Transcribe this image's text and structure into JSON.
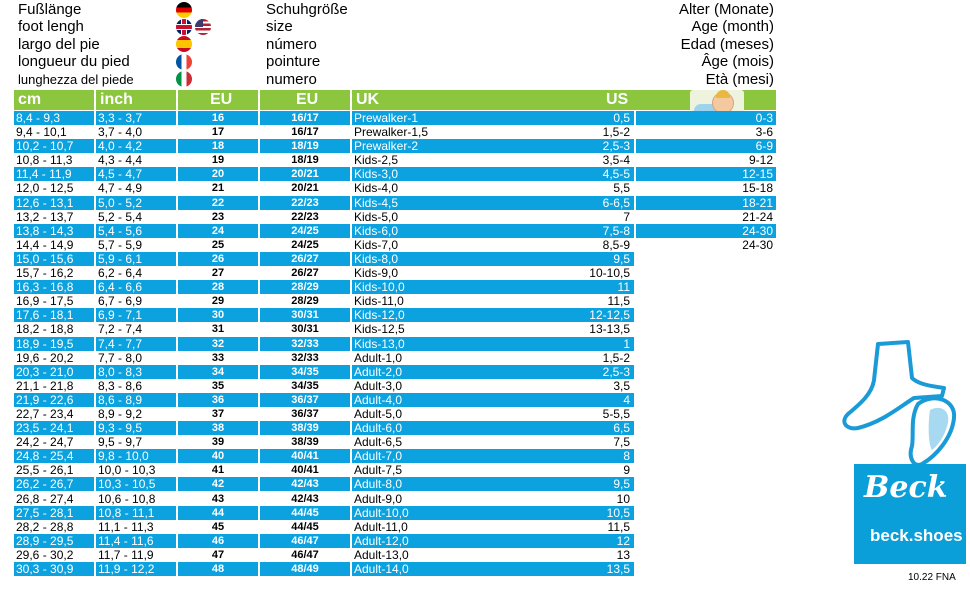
{
  "header": {
    "foot_labels": [
      "Fußlänge",
      "foot lengh",
      "largo del pie",
      "longueur du pied",
      "lunghezza del piede"
    ],
    "size_labels": [
      "Schuhgröße",
      "size",
      "número",
      "pointure",
      "numero"
    ],
    "age_labels": [
      "Alter (Monate)",
      "Age (month)",
      "Edad (meses)",
      "Âge (mois)",
      "Età (mesi)"
    ],
    "flag_icons": [
      "german-flag-icon",
      "uk-us-flags-icon",
      "spanish-flag-icon",
      "french-flag-icon",
      "italian-flag-icon"
    ]
  },
  "columns": [
    "cm",
    "inch",
    "EU",
    "EU",
    "UK",
    "US"
  ],
  "rows": [
    {
      "cm": "8,4 - 9,3",
      "inch": "3,3 - 3,7",
      "eu1": "16",
      "eu2": "16/17",
      "uk": "Prewalker-1",
      "us": "0,5",
      "age": "0-3"
    },
    {
      "cm": "9,4 - 10,1",
      "inch": "3,7 - 4,0",
      "eu1": "17",
      "eu2": "16/17",
      "uk": "Prewalker-1,5",
      "us": "1,5-2",
      "age": "3-6"
    },
    {
      "cm": "10,2 - 10,7",
      "inch": "4,0 - 4,2",
      "eu1": "18",
      "eu2": "18/19",
      "uk": "Prewalker-2",
      "us": "2,5-3",
      "age": "6-9"
    },
    {
      "cm": "10,8 - 11,3",
      "inch": "4,3 - 4,4",
      "eu1": "19",
      "eu2": "18/19",
      "uk": "Kids-2,5",
      "us": "3,5-4",
      "age": "9-12"
    },
    {
      "cm": "11,4 - 11,9",
      "inch": "4,5 - 4,7",
      "eu1": "20",
      "eu2": "20/21",
      "uk": "Kids-3,0",
      "us": "4,5-5",
      "age": "12-15"
    },
    {
      "cm": "12,0 - 12,5",
      "inch": "4,7 - 4,9",
      "eu1": "21",
      "eu2": "20/21",
      "uk": "Kids-4,0",
      "us": "5,5",
      "age": "15-18"
    },
    {
      "cm": "12,6 - 13,1",
      "inch": "5,0 - 5,2",
      "eu1": "22",
      "eu2": "22/23",
      "uk": "Kids-4,5",
      "us": "6-6,5",
      "age": "18-21"
    },
    {
      "cm": "13,2 - 13,7",
      "inch": "5,2 - 5,4",
      "eu1": "23",
      "eu2": "22/23",
      "uk": "Kids-5,0",
      "us": "7",
      "age": "21-24"
    },
    {
      "cm": "13,8 - 14,3",
      "inch": "5,4 - 5,6",
      "eu1": "24",
      "eu2": "24/25",
      "uk": "Kids-6,0",
      "us": "7,5-8",
      "age": "24-30"
    },
    {
      "cm": "14,4 - 14,9",
      "inch": "5,7 - 5,9",
      "eu1": "25",
      "eu2": "24/25",
      "uk": "Kids-7,0",
      "us": "8,5-9",
      "age": "24-30"
    },
    {
      "cm": "15,0 - 15,6",
      "inch": "5,9 - 6,1",
      "eu1": "26",
      "eu2": "26/27",
      "uk": "Kids-8,0",
      "us": "9,5",
      "age": ""
    },
    {
      "cm": "15,7 - 16,2",
      "inch": "6,2 - 6,4",
      "eu1": "27",
      "eu2": "26/27",
      "uk": "Kids-9,0",
      "us": "10-10,5",
      "age": ""
    },
    {
      "cm": "16,3 - 16,8",
      "inch": "6,4 - 6,6",
      "eu1": "28",
      "eu2": "28/29",
      "uk": "Kids-10,0",
      "us": "11",
      "age": ""
    },
    {
      "cm": "16,9 - 17,5",
      "inch": "6,7 - 6,9",
      "eu1": "29",
      "eu2": "28/29",
      "uk": "Kids-11,0",
      "us": "11,5",
      "age": ""
    },
    {
      "cm": "17,6 - 18,1",
      "inch": "6,9 - 7,1",
      "eu1": "30",
      "eu2": "30/31",
      "uk": "Kids-12,0",
      "us": "12-12,5",
      "age": ""
    },
    {
      "cm": "18,2 - 18,8",
      "inch": "7,2 - 7,4",
      "eu1": "31",
      "eu2": "30/31",
      "uk": "Kids-12,5",
      "us": "13-13,5",
      "age": ""
    },
    {
      "cm": "18,9 - 19,5",
      "inch": "7,4 - 7,7",
      "eu1": "32",
      "eu2": "32/33",
      "uk": "Kids-13,0",
      "us": "1",
      "age": ""
    },
    {
      "cm": "19,6 - 20,2",
      "inch": "7,7 - 8,0",
      "eu1": "33",
      "eu2": "32/33",
      "uk": "Adult-1,0",
      "us": "1,5-2",
      "age": ""
    },
    {
      "cm": "20,3 - 21,0",
      "inch": "8,0 - 8,3",
      "eu1": "34",
      "eu2": "34/35",
      "uk": "Adult-2,0",
      "us": "2,5-3",
      "age": ""
    },
    {
      "cm": "21,1 - 21,8",
      "inch": "8,3 - 8,6",
      "eu1": "35",
      "eu2": "34/35",
      "uk": "Adult-3,0",
      "us": "3,5",
      "age": ""
    },
    {
      "cm": "21,9 - 22,6",
      "inch": "8,6 - 8,9",
      "eu1": "36",
      "eu2": "36/37",
      "uk": "Adult-4,0",
      "us": "4",
      "age": ""
    },
    {
      "cm": "22,7 - 23,4",
      "inch": "8,9 - 9,2",
      "eu1": "37",
      "eu2": "36/37",
      "uk": "Adult-5,0",
      "us": "5-5,5",
      "age": ""
    },
    {
      "cm": "23,5 - 24,1",
      "inch": "9,3 - 9,5",
      "eu1": "38",
      "eu2": "38/39",
      "uk": "Adult-6,0",
      "us": "6,5",
      "age": ""
    },
    {
      "cm": "24,2 - 24,7",
      "inch": "9,5 - 9,7",
      "eu1": "39",
      "eu2": "38/39",
      "uk": "Adult-6,5",
      "us": "7,5",
      "age": ""
    },
    {
      "cm": "24,8 - 25,4",
      "inch": "9,8 - 10,0",
      "eu1": "40",
      "eu2": "40/41",
      "uk": "Adult-7,0",
      "us": "8",
      "age": ""
    },
    {
      "cm": "25,5 - 26,1",
      "inch": "10,0 - 10,3",
      "eu1": "41",
      "eu2": "40/41",
      "uk": "Adult-7,5",
      "us": "9",
      "age": ""
    },
    {
      "cm": "26,2 - 26,7",
      "inch": "10,3 - 10,5",
      "eu1": "42",
      "eu2": "42/43",
      "uk": "Adult-8,0",
      "us": "9,5",
      "age": ""
    },
    {
      "cm": "26,8 - 27,4",
      "inch": "10,6 - 10,8",
      "eu1": "43",
      "eu2": "42/43",
      "uk": "Adult-9,0",
      "us": "10",
      "age": ""
    },
    {
      "cm": "27,5 - 28,1",
      "inch": "10,8 - 11,1",
      "eu1": "44",
      "eu2": "44/45",
      "uk": "Adult-10,0",
      "us": "10,5",
      "age": ""
    },
    {
      "cm": "28,2 - 28,8",
      "inch": "11,1 - 11,3",
      "eu1": "45",
      "eu2": "44/45",
      "uk": "Adult-11,0",
      "us": "11,5",
      "age": ""
    },
    {
      "cm": "28,9 - 29,5",
      "inch": "11,4 - 11,6",
      "eu1": "46",
      "eu2": "46/47",
      "uk": "Adult-12,0",
      "us": "12",
      "age": ""
    },
    {
      "cm": "29,6 - 30,2",
      "inch": "11,7 - 11,9",
      "eu1": "47",
      "eu2": "46/47",
      "uk": "Adult-13,0",
      "us": "13",
      "age": ""
    },
    {
      "cm": "30,3 - 30,9",
      "inch": "11,9 - 12,2",
      "eu1": "48",
      "eu2": "48/49",
      "uk": "Adult-14,0",
      "us": "13,5",
      "age": ""
    }
  ],
  "colors": {
    "header_green": "#8cc63e",
    "row_blue": "#0ba2df",
    "logo_blue": "#0a9fd8"
  },
  "logo": {
    "script": "Beck",
    "url": "beck.shoes"
  },
  "doc_code": "10.22 FNA",
  "icons": {
    "baby": "baby-illustration-icon",
    "shoe": "shoe-outline-icon"
  }
}
